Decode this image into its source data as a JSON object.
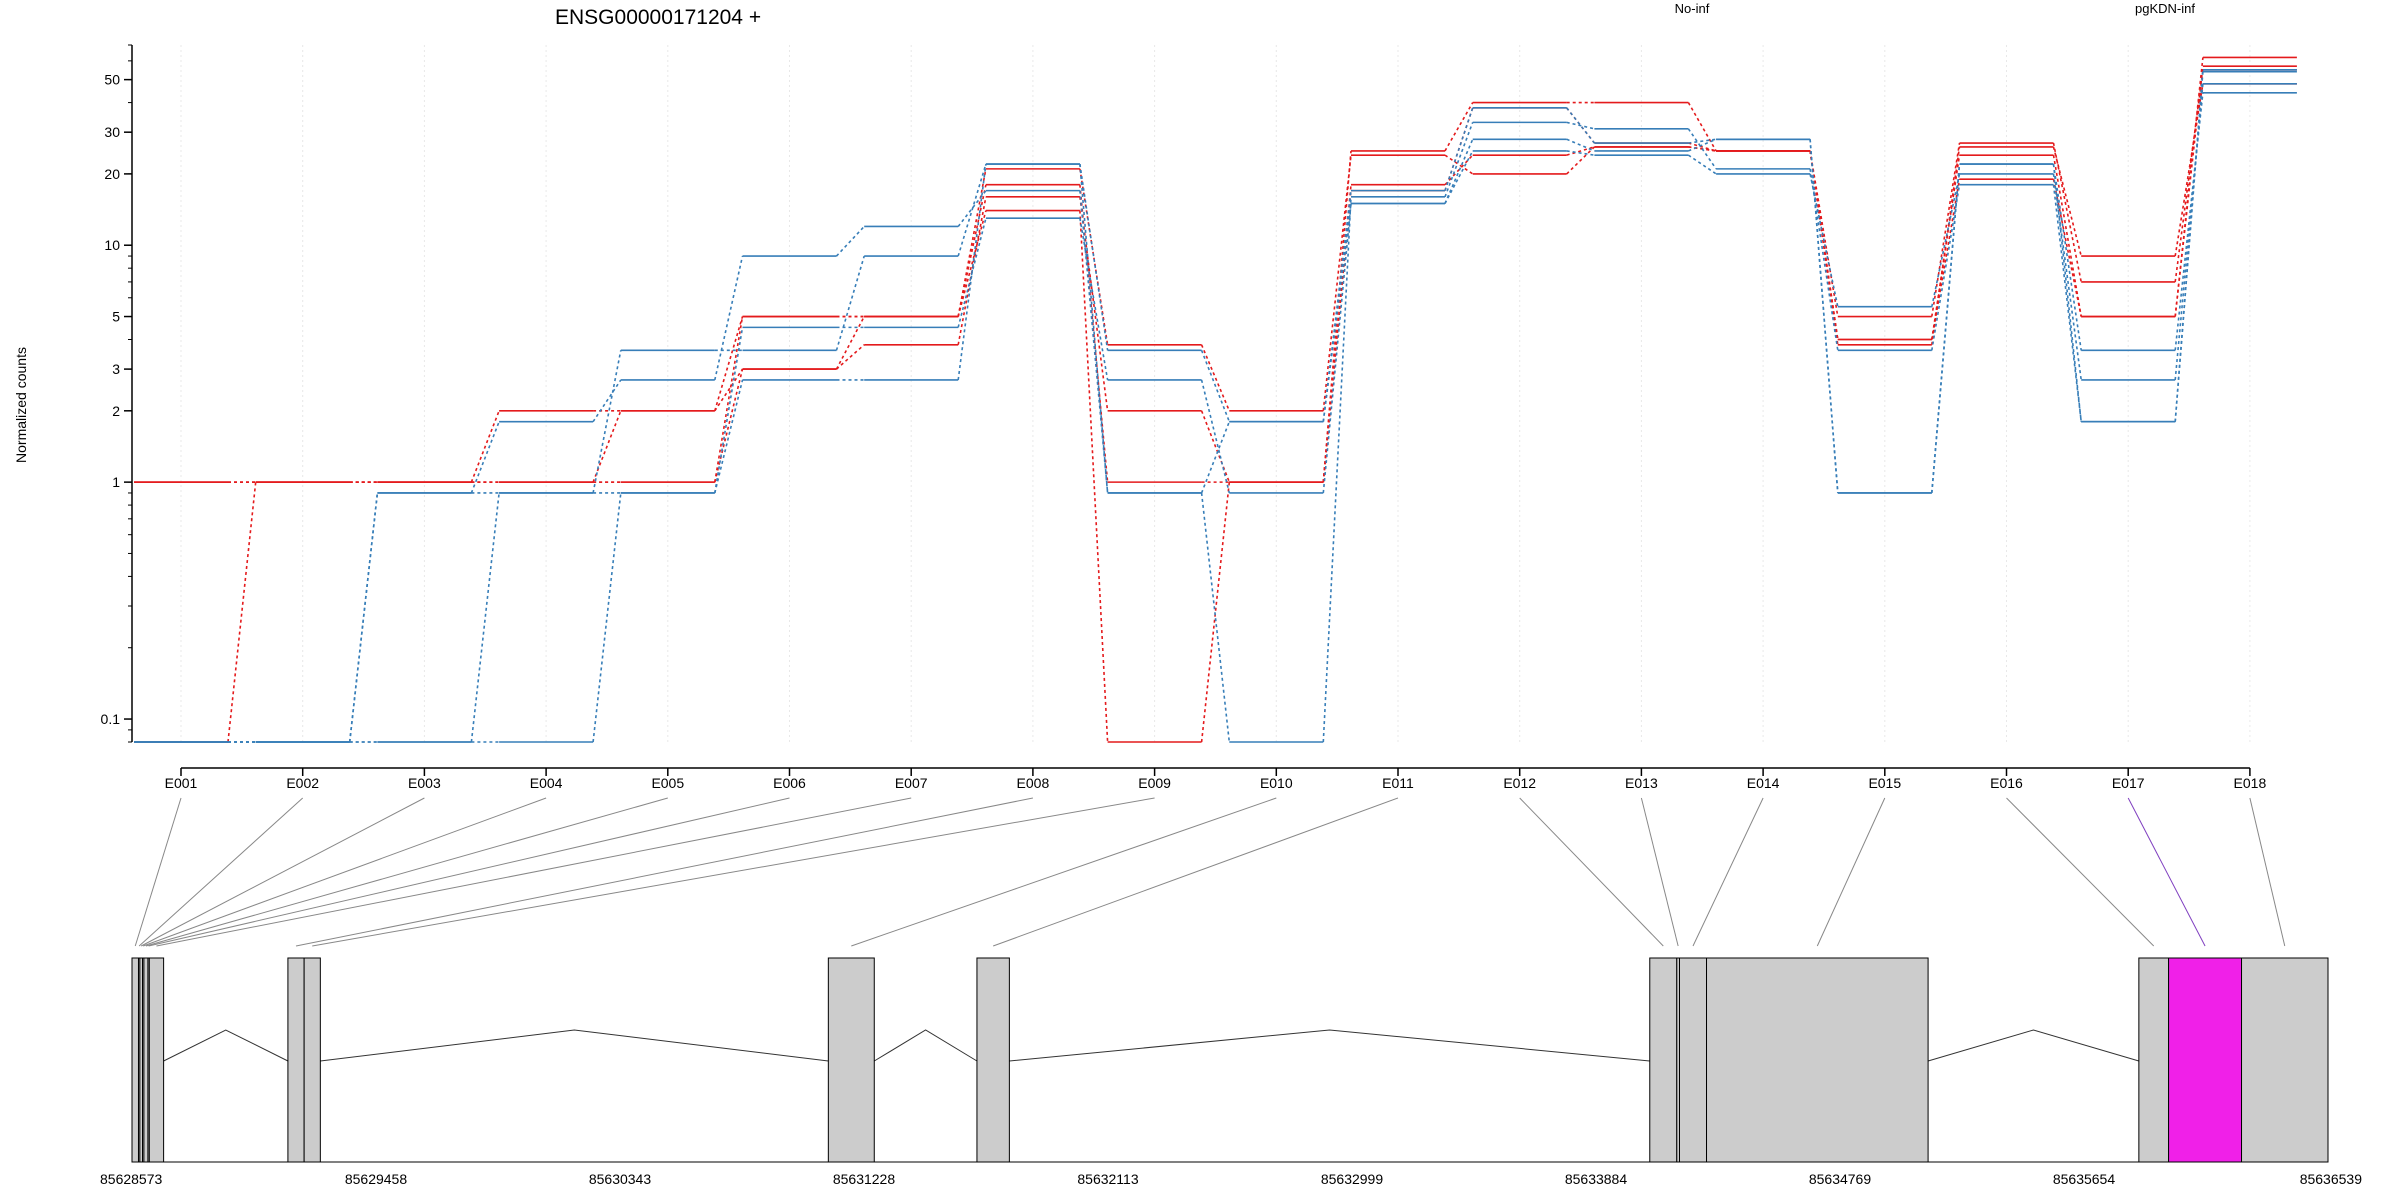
{
  "title": "ENSG00000171204 +",
  "ylabel": "Normalized counts",
  "legend": [
    {
      "label": "No-inf",
      "color": "#e41a1c"
    },
    {
      "label": "pgKDN-inf",
      "color": "#377eb8"
    }
  ],
  "colors": {
    "genomic_line": "#888888",
    "exon_fill": "#cccccc",
    "highlight_exon": "#f020e8",
    "highlight_link": "#8040c0"
  },
  "chart_data": {
    "type": "line",
    "title": "ENSG00000171204 +",
    "xlabel": "",
    "ylabel": "Normalized counts",
    "y_scale": "log",
    "ylim": [
      0.08,
      70
    ],
    "y_ticks": [
      {
        "v": 0.1,
        "label": "0.1"
      },
      {
        "v": 1,
        "label": "1"
      },
      {
        "v": 2,
        "label": "2"
      },
      {
        "v": 3,
        "label": "3"
      },
      {
        "v": 5,
        "label": "5"
      },
      {
        "v": 10,
        "label": "10"
      },
      {
        "v": 20,
        "label": "20"
      },
      {
        "v": 30,
        "label": "30"
      },
      {
        "v": 50,
        "label": "50"
      }
    ],
    "grid": true,
    "legend_position": "top-right",
    "categories": [
      "E001",
      "E002",
      "E003",
      "E004",
      "E005",
      "E006",
      "E007",
      "E008",
      "E009",
      "E010",
      "E011",
      "E012",
      "E013",
      "E014",
      "E015",
      "E016",
      "E017",
      "E018"
    ],
    "series": [
      {
        "group": "No-inf",
        "color": "#e41a1c",
        "values": [
          1,
          1,
          1,
          1,
          1,
          3,
          3.8,
          16,
          2,
          1,
          17,
          38,
          27,
          25,
          4,
          19,
          5,
          57
        ]
      },
      {
        "group": "No-inf",
        "color": "#e41a1c",
        "values": [
          1,
          1,
          1,
          2,
          2,
          5,
          5,
          18,
          1,
          1,
          25,
          40,
          40,
          25,
          5,
          27,
          7,
          55
        ]
      },
      {
        "group": "No-inf",
        "color": "#e41a1c",
        "values": [
          1,
          1,
          1,
          1,
          2,
          3,
          5,
          21,
          3.8,
          2,
          24,
          20,
          26,
          25,
          4,
          24,
          5,
          62
        ]
      },
      {
        "group": "No-inf",
        "color": "#e41a1c",
        "values": [
          0.08,
          1,
          1,
          1,
          1,
          5,
          5,
          14,
          0.08,
          1,
          18,
          24,
          26,
          25,
          3.8,
          26,
          9,
          48
        ]
      },
      {
        "group": "pgKDN-inf",
        "color": "#377eb8",
        "values": [
          0.08,
          0.08,
          0.08,
          0.9,
          3.6,
          3.6,
          9,
          22,
          3.6,
          1.8,
          15,
          28,
          25,
          28,
          0.9,
          22,
          3.6,
          44
        ]
      },
      {
        "group": "pgKDN-inf",
        "color": "#377eb8",
        "values": [
          0.08,
          0.08,
          0.9,
          1.8,
          2.7,
          9,
          12,
          17,
          0.9,
          0.08,
          16,
          33,
          31,
          21,
          3.6,
          18,
          1.8,
          55
        ]
      },
      {
        "group": "pgKDN-inf",
        "color": "#377eb8",
        "values": [
          0.08,
          0.08,
          0.08,
          0.08,
          0.9,
          4.5,
          4.5,
          13,
          2.7,
          0.9,
          15,
          25,
          24,
          20,
          5.5,
          20,
          2.7,
          48
        ]
      },
      {
        "group": "pgKDN-inf",
        "color": "#377eb8",
        "values": [
          0.08,
          0.08,
          0.9,
          0.9,
          0.9,
          2.7,
          2.7,
          22,
          0.9,
          1.8,
          17,
          38,
          27,
          28,
          0.9,
          22,
          1.8,
          54
        ]
      }
    ]
  },
  "gene_model": {
    "coordinate_labels": [
      "85628573",
      "85629458",
      "85630343",
      "85631228",
      "85632113",
      "85632999",
      "85633884",
      "85634769",
      "85635654",
      "85636539"
    ],
    "genomic_range": [
      85628573,
      85636700
    ],
    "exon_bins": [
      {
        "id": "E001",
        "start": 85628573,
        "end": 85628597
      },
      {
        "id": "E002",
        "start": 85628597,
        "end": 85628602
      },
      {
        "id": "E003",
        "start": 85628602,
        "end": 85628612
      },
      {
        "id": "E004",
        "start": 85628612,
        "end": 85628617
      },
      {
        "id": "E005",
        "start": 85628617,
        "end": 85628632
      },
      {
        "id": "E006",
        "start": 85628632,
        "end": 85628637
      },
      {
        "id": "E007",
        "start": 85628637,
        "end": 85628690
      },
      {
        "id": "E008",
        "start": 85629150,
        "end": 85629210
      },
      {
        "id": "E009",
        "start": 85629210,
        "end": 85629270
      },
      {
        "id": "E010",
        "start": 85631150,
        "end": 85631320
      },
      {
        "id": "E011",
        "start": 85631700,
        "end": 85631820
      },
      {
        "id": "E012",
        "start": 85634190,
        "end": 85634290
      },
      {
        "id": "E013",
        "start": 85634290,
        "end": 85634300
      },
      {
        "id": "E014",
        "start": 85634300,
        "end": 85634400
      },
      {
        "id": "E015",
        "start": 85634400,
        "end": 85635220
      },
      {
        "id": "E016",
        "start": 85636000,
        "end": 85636110
      },
      {
        "id": "E017",
        "start": 85636110,
        "end": 85636380,
        "highlight": true
      },
      {
        "id": "E018",
        "start": 85636380,
        "end": 85636700
      }
    ],
    "introns": [
      {
        "from": 85628690,
        "to": 85629150
      },
      {
        "from": 85629270,
        "to": 85631150
      },
      {
        "from": 85631320,
        "to": 85631700
      },
      {
        "from": 85631820,
        "to": 85634190
      },
      {
        "from": 85635220,
        "to": 85636000
      }
    ]
  }
}
